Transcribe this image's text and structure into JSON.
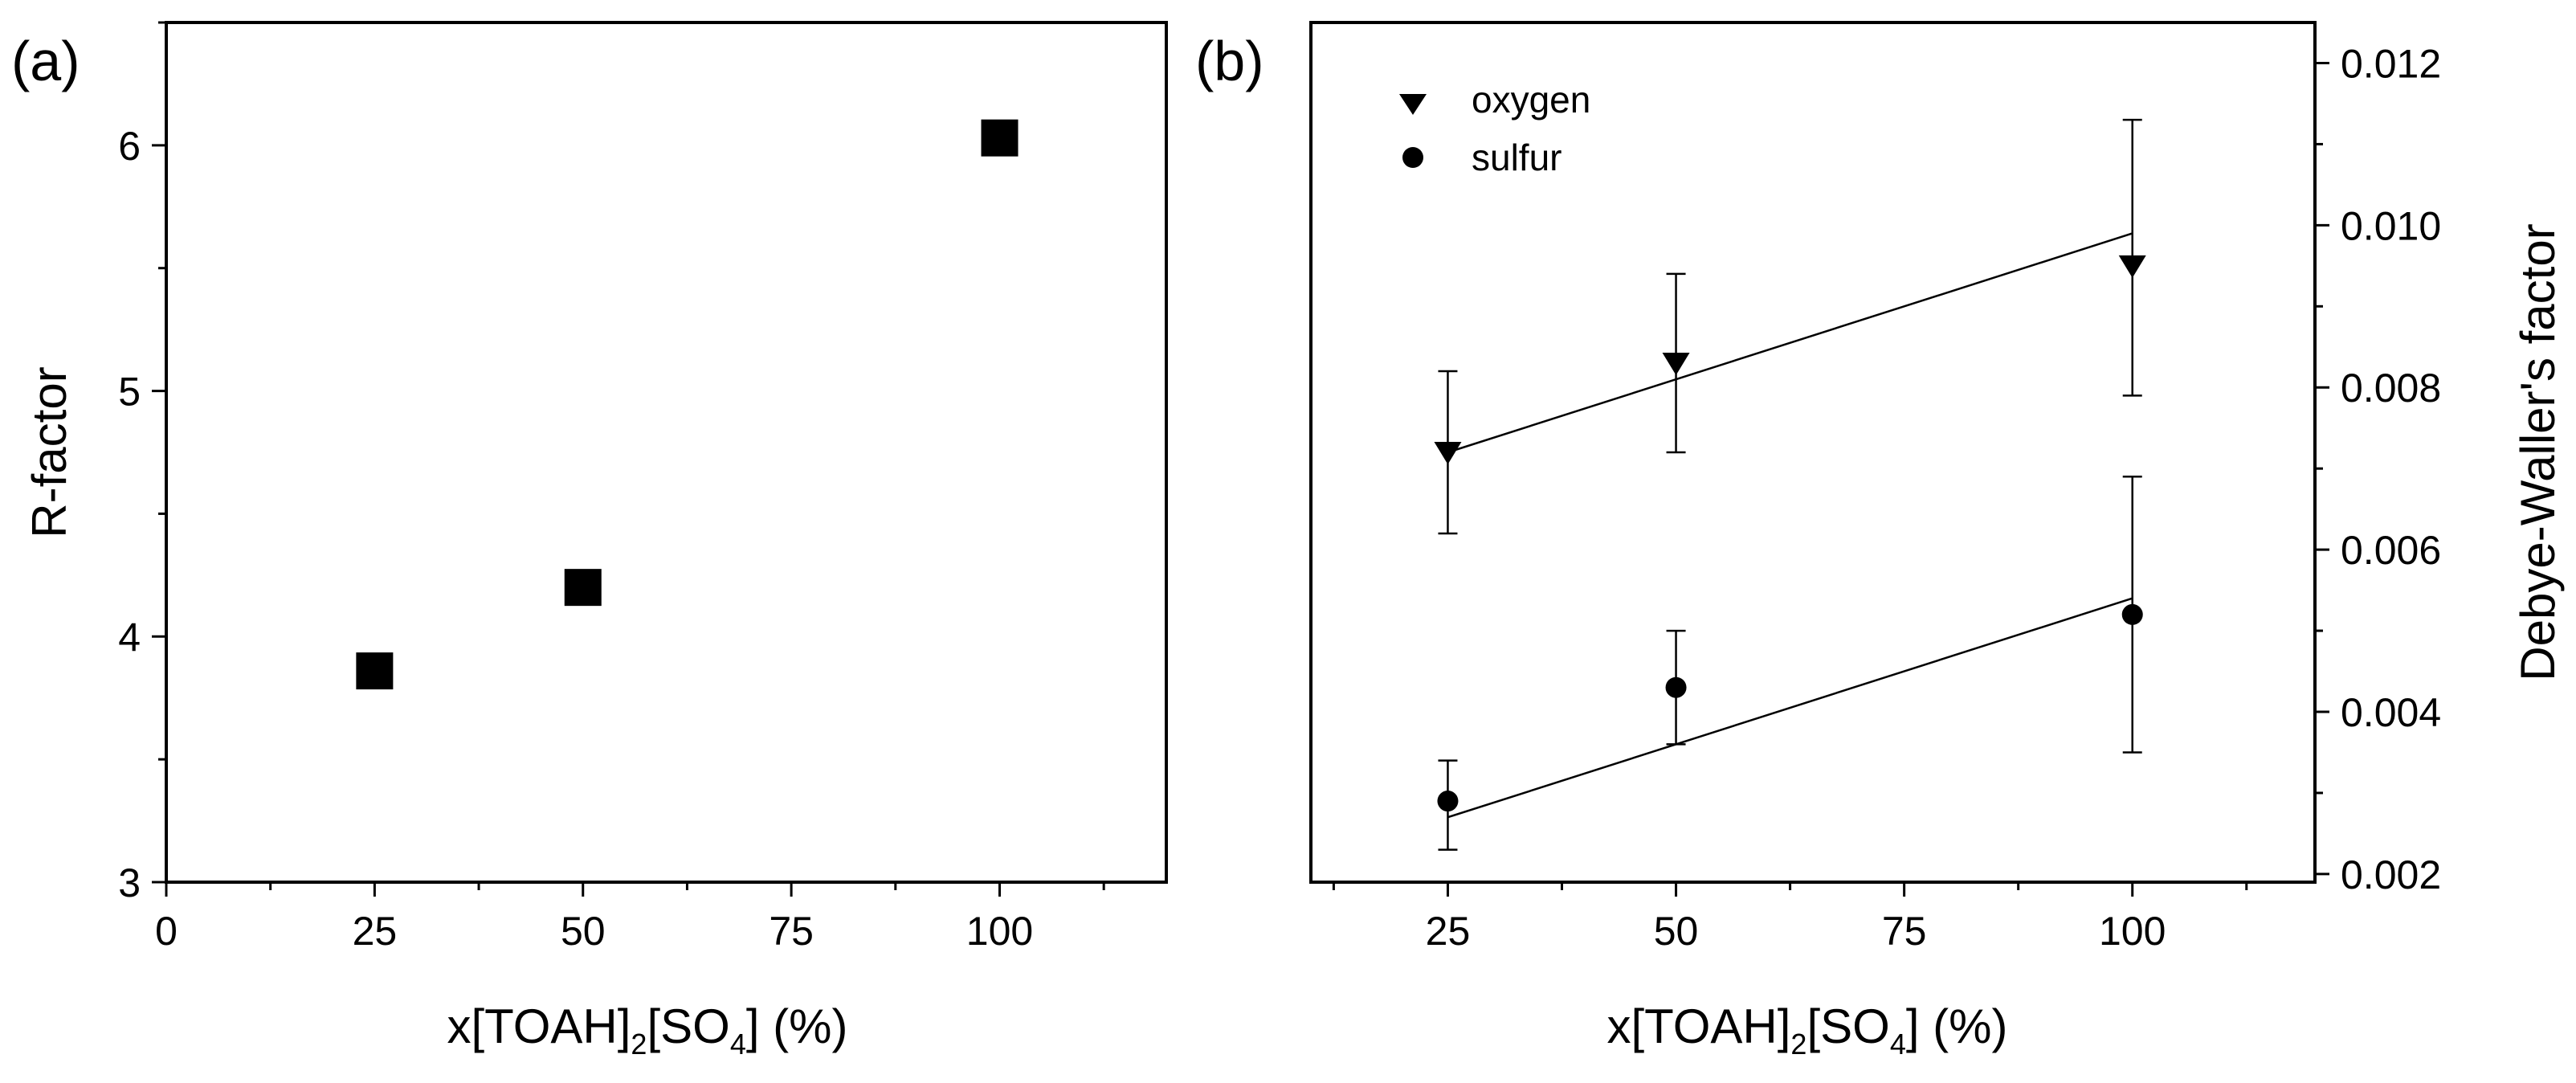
{
  "chart_data": [
    {
      "panel": "(a)",
      "type": "scatter",
      "xlabel": "x[TOAH]2[SO4] (%)",
      "xlabel_parts": {
        "pre": "x[TOAH]",
        "sub1": "2",
        "mid": "[SO",
        "sub2": "4",
        "post": "] (%)"
      },
      "ylabel": "R-factor",
      "xlim": [
        0,
        120
      ],
      "ylim": [
        3,
        6.5
      ],
      "xticks": [
        0,
        25,
        50,
        75,
        100
      ],
      "xtick_labels": [
        "0",
        "25",
        "50",
        "75",
        "100"
      ],
      "yticks": [
        3,
        4,
        5,
        6
      ],
      "ytick_labels": [
        "3",
        "4",
        "5",
        "6"
      ],
      "series": [
        {
          "name": "R-factor",
          "marker": "square",
          "x": [
            25,
            50,
            100
          ],
          "y": [
            3.86,
            4.2,
            6.03
          ]
        }
      ]
    },
    {
      "panel": "(b)",
      "type": "scatter",
      "xlabel": "x[TOAH]2[SO4] (%)",
      "xlabel_parts": {
        "pre": "x[TOAH]",
        "sub1": "2",
        "mid": "[SO",
        "sub2": "4",
        "post": "] (%)"
      },
      "ylabel": "Debye-Waller's factor",
      "y_axis_side": "right",
      "xlim": [
        10,
        120
      ],
      "ylim": [
        0.0019,
        0.0125
      ],
      "xticks": [
        25,
        50,
        75,
        100
      ],
      "xtick_labels": [
        "25",
        "50",
        "75",
        "100"
      ],
      "yticks": [
        0.002,
        0.004,
        0.006,
        0.008,
        0.01,
        0.012
      ],
      "ytick_labels": [
        "0.002",
        "0.004",
        "0.006",
        "0.008",
        "0.010",
        "0.012"
      ],
      "legend_position": "top-left",
      "series": [
        {
          "name": "oxygen",
          "marker": "triangle-down",
          "x": [
            25,
            50,
            100
          ],
          "y": [
            0.0072,
            0.0083,
            0.0095
          ],
          "err_low": [
            0.0062,
            0.0072,
            0.0079
          ],
          "err_high": [
            0.0082,
            0.0094,
            0.0113
          ],
          "fit": {
            "x": [
              25,
              100
            ],
            "y": [
              0.0072,
              0.0099
            ]
          }
        },
        {
          "name": "sulfur",
          "marker": "circle",
          "x": [
            25,
            50,
            100
          ],
          "y": [
            0.0029,
            0.0043,
            0.0052
          ],
          "err_low": [
            0.0023,
            0.0036,
            0.0035
          ],
          "err_high": [
            0.0034,
            0.005,
            0.0069
          ],
          "fit": {
            "x": [
              25,
              100
            ],
            "y": [
              0.0027,
              0.0054
            ]
          }
        }
      ]
    }
  ]
}
